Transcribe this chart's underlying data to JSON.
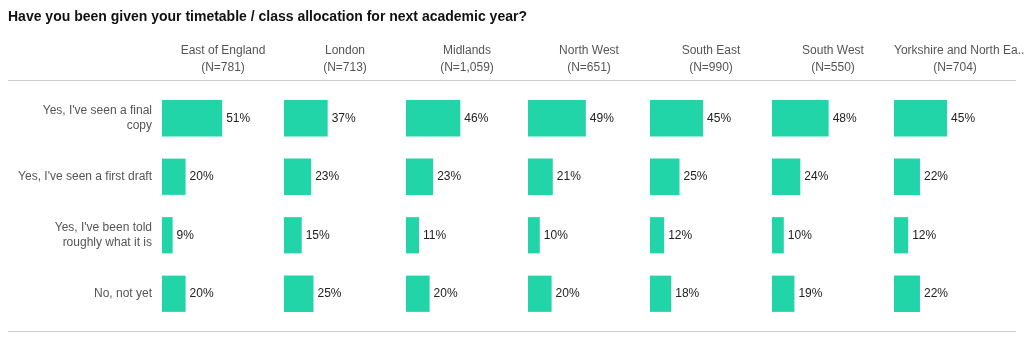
{
  "chart_data": [
    {
      "type": "bar",
      "orientation": "horizontal",
      "annotations": [
        "Have you been given your timetable / class allocation for next academic year?"
      ],
      "title": "East of England",
      "subtitle": "(N=781)",
      "categories": [
        "Yes, I've seen a final copy",
        "Yes, I've seen a first draft",
        "Yes, I've been told roughly what it is",
        "No, not yet"
      ],
      "values": [
        51,
        20,
        9,
        20
      ],
      "value_labels": [
        "51%",
        "20%",
        "9%",
        "20%"
      ],
      "color": "#21d5a9",
      "tick_labels": "y",
      "legend": false,
      "grid": false
    },
    {
      "type": "bar",
      "orientation": "horizontal",
      "title": "London",
      "subtitle": "(N=713)",
      "categories": [
        null,
        null,
        null,
        null
      ],
      "values": [
        37,
        23,
        15,
        25
      ],
      "value_labels": [
        "37%",
        "23%",
        "15%",
        "25%"
      ],
      "color": "#21d5a9",
      "tick_labels": false,
      "legend": false,
      "grid": false
    },
    {
      "type": "bar",
      "orientation": "horizontal",
      "title": "Midlands",
      "subtitle": "(N=1,059)",
      "categories": [
        null,
        null,
        null,
        null
      ],
      "values": [
        46,
        23,
        11,
        20
      ],
      "value_labels": [
        "46%",
        "23%",
        "11%",
        "20%"
      ],
      "color": "#21d5a9",
      "tick_labels": false,
      "legend": false,
      "grid": false
    },
    {
      "type": "bar",
      "orientation": "horizontal",
      "title": "North West",
      "subtitle": "(N=651)",
      "categories": [
        null,
        null,
        null,
        null
      ],
      "values": [
        49,
        21,
        10,
        20
      ],
      "value_labels": [
        "49%",
        "21%",
        "10%",
        "20%"
      ],
      "color": "#21d5a9",
      "tick_labels": false,
      "legend": false,
      "grid": false
    },
    {
      "type": "bar",
      "orientation": "horizontal",
      "title": "South East",
      "subtitle": "(N=990)",
      "categories": [
        null,
        null,
        null,
        null
      ],
      "values": [
        45,
        25,
        12,
        18
      ],
      "value_labels": [
        "45%",
        "25%",
        "12%",
        "18%"
      ],
      "color": "#21d5a9",
      "tick_labels": false,
      "legend": false,
      "grid": false
    },
    {
      "type": "bar",
      "orientation": "horizontal",
      "title": "South West",
      "subtitle": "(N=550)",
      "categories": [
        null,
        null,
        null,
        null
      ],
      "values": [
        48,
        24,
        10,
        19
      ],
      "value_labels": [
        "48%",
        "24%",
        "10%",
        "19%"
      ],
      "color": "#21d5a9",
      "tick_labels": false,
      "legend": false,
      "grid": false
    },
    {
      "type": "bar",
      "orientation": "horizontal",
      "title": "Yorkshire and North Ea..",
      "subtitle": "(N=704)",
      "categories": [
        null,
        null,
        null,
        null
      ],
      "values": [
        45,
        22,
        12,
        22
      ],
      "value_labels": [
        "45%",
        "22%",
        "12%",
        "22%"
      ],
      "color": "#21d5a9",
      "tick_labels": false,
      "legend": false,
      "grid": false
    }
  ]
}
